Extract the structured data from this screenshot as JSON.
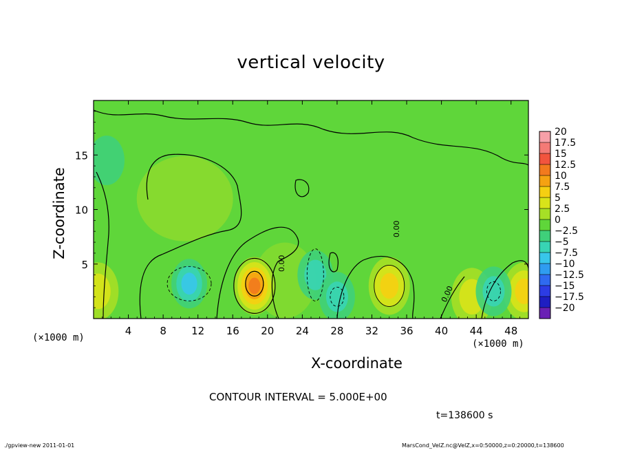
{
  "chart_data": {
    "type": "heatmap",
    "title": "vertical velocity",
    "xlabel": "X-coordinate",
    "ylabel": "Z-coordinate",
    "x_unit_left": "(×1000 m)",
    "x_unit_right": "(×1000 m)",
    "xlim": [
      0,
      50
    ],
    "ylim": [
      0,
      20
    ],
    "x_ticks": [
      "4",
      "8",
      "12",
      "16",
      "20",
      "24",
      "28",
      "32",
      "36",
      "40",
      "44",
      "48"
    ],
    "x_tick_values": [
      4,
      8,
      12,
      16,
      20,
      24,
      28,
      32,
      36,
      40,
      44,
      48
    ],
    "y_ticks": [
      "5",
      "10",
      "15"
    ],
    "y_tick_values": [
      5,
      10,
      15
    ],
    "colorbar": {
      "labels": [
        "20",
        "17.5",
        "15",
        "12.5",
        "10",
        "7.5",
        "5",
        "2.5",
        "0",
        "−2.5",
        "−5",
        "−7.5",
        "−10",
        "−12.5",
        "−15",
        "−17.5",
        "−20"
      ],
      "levels": [
        20,
        17.5,
        15,
        12.5,
        10,
        7.5,
        5,
        2.5,
        0,
        -2.5,
        -5,
        -7.5,
        -10,
        -12.5,
        -15,
        -17.5,
        -20
      ],
      "colors": [
        "#f7a0a8",
        "#f47a76",
        "#f2543e",
        "#f27a1e",
        "#f5a212",
        "#f5cf12",
        "#d8e31a",
        "#a6df26",
        "#5fd63a",
        "#3fd07a",
        "#38d4b4",
        "#38c6ea",
        "#2f9cf0",
        "#2f6af0",
        "#2c3ce4",
        "#1e1ec2",
        "#6a20b4"
      ]
    },
    "features": [
      {
        "kind": "updraft",
        "x": 18.5,
        "z": 3.0,
        "peak": 12.5
      },
      {
        "kind": "updraft",
        "x": 34,
        "z": 3.0,
        "peak": 7.5
      },
      {
        "kind": "updraft",
        "x": 43.5,
        "z": 2.0,
        "peak": 5
      },
      {
        "kind": "updraft",
        "x": 49.5,
        "z": 2.5,
        "peak": 7.5
      },
      {
        "kind": "updraft",
        "x": 0.5,
        "z": 2.5,
        "peak": 5
      },
      {
        "kind": "downdraft",
        "x": 11,
        "z": 3.2,
        "peak": -7.5
      },
      {
        "kind": "downdraft",
        "x": 25.5,
        "z": 4.0,
        "peak": -5
      },
      {
        "kind": "downdraft",
        "x": 28,
        "z": 2.0,
        "peak": -5
      },
      {
        "kind": "downdraft",
        "x": 46,
        "z": 2.5,
        "peak": -5
      },
      {
        "kind": "downdraft",
        "x": 1.5,
        "z": 14.5,
        "peak": -2.5
      }
    ],
    "contour_labels": [
      "0.00",
      "0.00",
      "0.00"
    ],
    "grid": false
  },
  "annotations": {
    "contour_interval": "CONTOUR INTERVAL = 5.000E+00",
    "time": "t=138600 s"
  },
  "footer": {
    "left": "./gpview-new  2011-01-01",
    "right": "MarsCond_VelZ.nc@VelZ,x=0:50000,z=0:20000,t=138600"
  }
}
